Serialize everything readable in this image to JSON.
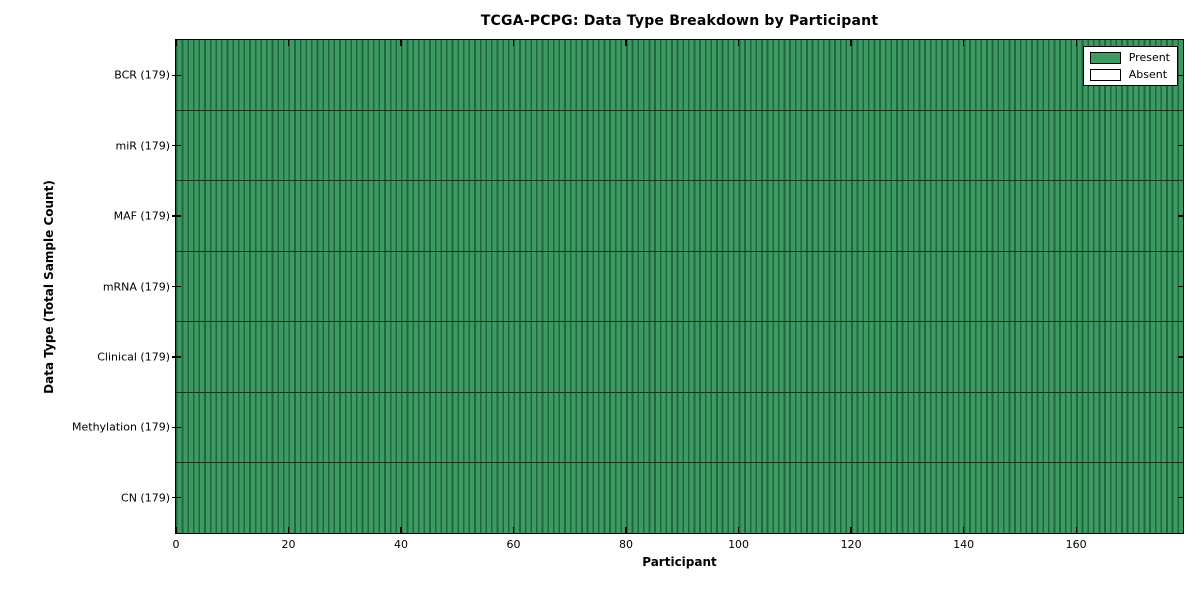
{
  "chart_data": {
    "type": "heatmap",
    "title": "TCGA-PCPG: Data Type Breakdown by Participant",
    "xlabel": "Participant",
    "ylabel": "Data Type (Total Sample Count)",
    "rows": [
      {
        "label": "BCR (179)",
        "data_type": "BCR",
        "total_sample_count": 179,
        "present_participants": 179,
        "absent_participants": 0
      },
      {
        "label": "miR (179)",
        "data_type": "miR",
        "total_sample_count": 179,
        "present_participants": 179,
        "absent_participants": 0
      },
      {
        "label": "MAF (179)",
        "data_type": "MAF",
        "total_sample_count": 179,
        "present_participants": 179,
        "absent_participants": 0
      },
      {
        "label": "mRNA (179)",
        "data_type": "mRNA",
        "total_sample_count": 179,
        "present_participants": 179,
        "absent_participants": 0
      },
      {
        "label": "Clinical (179)",
        "data_type": "Clinical",
        "total_sample_count": 179,
        "present_participants": 179,
        "absent_participants": 0
      },
      {
        "label": "Methylation (179)",
        "data_type": "Methylation",
        "total_sample_count": 179,
        "present_participants": 179,
        "absent_participants": 0
      },
      {
        "label": "CN (179)",
        "data_type": "CN",
        "total_sample_count": 179,
        "present_participants": 179,
        "absent_participants": 0
      }
    ],
    "n_participants": 179,
    "xlim": [
      0,
      179
    ],
    "x_ticks": [
      0,
      20,
      40,
      60,
      80,
      100,
      120,
      140,
      160
    ],
    "legend": {
      "position": "upper right",
      "entries": [
        {
          "label": "Present",
          "color": "#3C9A62"
        },
        {
          "label": "Absent",
          "color": "#ffffff"
        }
      ]
    },
    "colors": {
      "present_fill": "#3C9A62",
      "cell_edge": "#20663F",
      "row_divider": "#15341f",
      "frame": "#000000",
      "background": "#ffffff",
      "text": "#000000"
    },
    "grid": false
  }
}
